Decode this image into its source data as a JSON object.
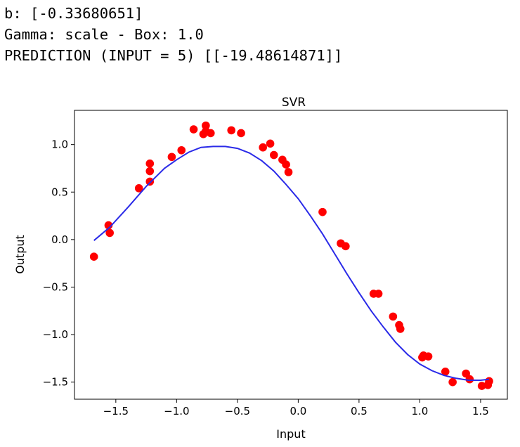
{
  "console": {
    "line1": "b: [-0.33680651]",
    "line2": "Gamma: scale - Box: 1.0",
    "line3": "PREDICTION (INPUT = 5) [[-19.48614871]]"
  },
  "chart_data": {
    "type": "scatter",
    "title": "SVR",
    "xlabel": "Input",
    "ylabel": "Output",
    "xlim": [
      -1.84,
      1.72
    ],
    "ylim": [
      -1.68,
      1.36
    ],
    "xticks": [
      -1.5,
      -1.0,
      -0.5,
      0.0,
      0.5,
      1.0,
      1.5
    ],
    "xtick_labels": [
      "−1.5",
      "−1.0",
      "−0.5",
      "0.0",
      "0.5",
      "1.0",
      "1.5"
    ],
    "yticks": [
      -1.5,
      -1.0,
      -0.5,
      0.0,
      0.5,
      1.0
    ],
    "ytick_labels": [
      "−1.5",
      "−1.0",
      "−0.5",
      "0.0",
      "0.5",
      "1.0"
    ],
    "grid": false,
    "scatter_color": "#ff0000",
    "line_color": "#2a2ae8",
    "scatter": {
      "x": [
        -1.68,
        -1.56,
        -1.55,
        -1.31,
        -1.22,
        -1.22,
        -1.22,
        -1.04,
        -0.96,
        -0.86,
        -0.78,
        -0.76,
        -0.76,
        -0.72,
        -0.55,
        -0.47,
        -0.29,
        -0.23,
        -0.2,
        -0.13,
        -0.1,
        -0.08,
        0.2,
        0.35,
        0.39,
        0.62,
        0.66,
        0.78,
        0.83,
        0.84,
        1.02,
        1.03,
        1.07,
        1.21,
        1.27,
        1.38,
        1.41,
        1.51,
        1.56,
        1.57
      ],
      "y": [
        -0.18,
        0.15,
        0.07,
        0.54,
        0.8,
        0.72,
        0.61,
        0.87,
        0.94,
        1.16,
        1.11,
        1.2,
        1.14,
        1.12,
        1.15,
        1.12,
        0.97,
        1.01,
        0.89,
        0.84,
        0.79,
        0.71,
        0.29,
        -0.04,
        -0.07,
        -0.57,
        -0.57,
        -0.81,
        -0.9,
        -0.94,
        -1.24,
        -1.22,
        -1.23,
        -1.39,
        -1.5,
        -1.41,
        -1.47,
        -1.54,
        -1.53,
        -1.49
      ]
    },
    "line": {
      "x": [
        -1.68,
        -1.55,
        -1.4,
        -1.25,
        -1.1,
        -1.0,
        -0.9,
        -0.8,
        -0.7,
        -0.6,
        -0.5,
        -0.4,
        -0.3,
        -0.2,
        -0.1,
        0.0,
        0.1,
        0.2,
        0.3,
        0.4,
        0.5,
        0.6,
        0.7,
        0.8,
        0.9,
        1.0,
        1.1,
        1.2,
        1.3,
        1.4,
        1.5,
        1.57
      ],
      "y": [
        -0.01,
        0.13,
        0.34,
        0.56,
        0.75,
        0.84,
        0.92,
        0.97,
        0.98,
        0.98,
        0.96,
        0.91,
        0.83,
        0.72,
        0.58,
        0.43,
        0.25,
        0.06,
        -0.15,
        -0.36,
        -0.56,
        -0.75,
        -0.92,
        -1.08,
        -1.21,
        -1.31,
        -1.38,
        -1.43,
        -1.46,
        -1.48,
        -1.48,
        -1.47
      ]
    }
  }
}
